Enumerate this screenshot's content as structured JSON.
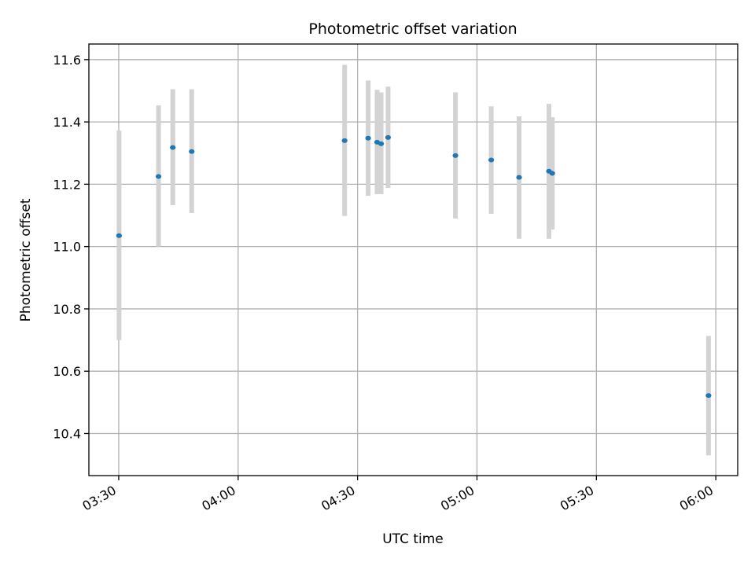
{
  "chart_data": {
    "type": "scatter",
    "title": "Photometric offset variation",
    "xlabel": "UTC time",
    "ylabel": "Photometric offset",
    "grid": true,
    "x_tick_labels": [
      "03:30",
      "04:00",
      "04:30",
      "05:00",
      "05:30",
      "06:00"
    ],
    "y_tick_labels": [
      "10.4",
      "10.6",
      "10.8",
      "11.0",
      "11.2",
      "11.4",
      "11.6"
    ],
    "x_ticks": [
      "03:30",
      "04:00",
      "04:30",
      "05:00",
      "05:30",
      "06:00"
    ],
    "y_ticks": [
      10.4,
      10.6,
      10.8,
      11.0,
      11.2,
      11.4,
      11.6
    ],
    "xlim": [
      "03:22:30",
      "06:05:30"
    ],
    "ylim": [
      10.265,
      11.65
    ],
    "colors": {
      "points": "#1f77b4",
      "errorbars": "#d3d3d3",
      "grid": "#b0b0b0"
    },
    "series": [
      {
        "points": [
          {
            "x": "03:30:05",
            "y": 11.035,
            "ylow": 10.7,
            "yhigh": 11.372
          },
          {
            "x": "03:40:00",
            "y": 11.225,
            "ylow": 11.0,
            "yhigh": 11.453
          },
          {
            "x": "03:43:35",
            "y": 11.318,
            "ylow": 11.133,
            "yhigh": 11.505
          },
          {
            "x": "03:48:20",
            "y": 11.305,
            "ylow": 11.108,
            "yhigh": 11.505
          },
          {
            "x": "04:26:45",
            "y": 11.34,
            "ylow": 11.098,
            "yhigh": 11.583
          },
          {
            "x": "04:32:40",
            "y": 11.348,
            "ylow": 11.163,
            "yhigh": 11.533
          },
          {
            "x": "04:34:55",
            "y": 11.335,
            "ylow": 11.168,
            "yhigh": 11.503
          },
          {
            "x": "04:35:55",
            "y": 11.33,
            "ylow": 11.168,
            "yhigh": 11.495
          },
          {
            "x": "04:37:40",
            "y": 11.35,
            "ylow": 11.188,
            "yhigh": 11.513
          },
          {
            "x": "04:54:35",
            "y": 11.292,
            "ylow": 11.09,
            "yhigh": 11.495
          },
          {
            "x": "05:03:35",
            "y": 11.278,
            "ylow": 11.105,
            "yhigh": 11.45
          },
          {
            "x": "05:10:35",
            "y": 11.222,
            "ylow": 11.025,
            "yhigh": 11.418
          },
          {
            "x": "05:18:05",
            "y": 11.242,
            "ylow": 11.025,
            "yhigh": 11.458
          },
          {
            "x": "05:18:55",
            "y": 11.235,
            "ylow": 11.055,
            "yhigh": 11.415
          },
          {
            "x": "05:58:10",
            "y": 10.522,
            "ylow": 10.33,
            "yhigh": 10.713
          }
        ]
      }
    ]
  }
}
